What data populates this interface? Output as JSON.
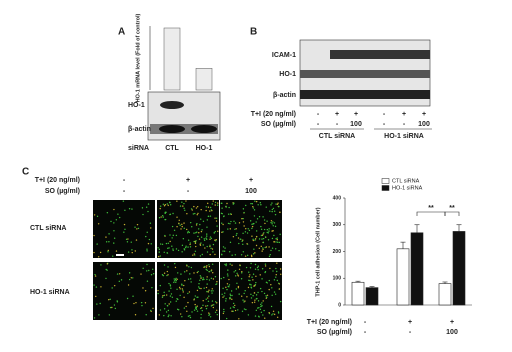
{
  "panel_labels": [
    "A",
    "B",
    "C"
  ],
  "chart_data": [
    {
      "type": "bar",
      "y_label": "HO-1 mRNA level (Fold of control)",
      "categories": [
        "CTL",
        "HO-1"
      ],
      "values": [
        1,
        0.35
      ],
      "color": "#ececec",
      "ylim": [
        0,
        1
      ]
    },
    {
      "type": "grouped_bar",
      "y_label": "THP-1 cell adhesion (Cell number)",
      "categories": [
        null,
        null,
        null
      ],
      "series": [
        {
          "name": "CTL siRNA",
          "color": "#ffffff",
          "values": [
            85,
            210,
            80
          ],
          "errors": [
            4,
            25,
            6
          ]
        },
        {
          "name": "HO-1 siRNA",
          "color": "#111111",
          "values": [
            65,
            270,
            275
          ],
          "errors": [
            4,
            30,
            25
          ]
        }
      ],
      "ylim": [
        0,
        400
      ],
      "yticks": [
        0,
        100,
        200,
        300,
        400
      ],
      "annotations": [
        "**",
        "**"
      ],
      "condition_rows": [
        {
          "label": "T+I (20 ng/ml)",
          "values": [
            "-",
            "+",
            "+"
          ]
        },
        {
          "label": "SO (µg/ml)",
          "values": [
            "-",
            "-",
            "100"
          ]
        }
      ]
    }
  ],
  "blot_a": {
    "rows": [
      "HO-1",
      "β-actin"
    ],
    "sirna_label": "siRNA"
  },
  "blot_b": {
    "rows": [
      "ICAM-1",
      "HO-1",
      "β-actin"
    ],
    "conditions": [
      {
        "label": "T+I (20 ng/ml)",
        "values": [
          "-",
          "+",
          "+",
          "-",
          "+",
          "+"
        ]
      },
      {
        "label": "SO (µg/ml)",
        "values": [
          "-",
          "-",
          "100",
          "-",
          "-",
          "100"
        ]
      }
    ],
    "groups": [
      "CTL siRNA",
      "HO-1 siRNA"
    ]
  },
  "micro": {
    "conditions": [
      {
        "label": "T+I (20 ng/ml)",
        "values": [
          "-",
          "+",
          "+"
        ]
      },
      {
        "label": "SO (µg/ml)",
        "values": [
          "-",
          "-",
          "100"
        ]
      }
    ],
    "rows": [
      "CTL siRNA",
      "HO-1 siRNA"
    ]
  }
}
